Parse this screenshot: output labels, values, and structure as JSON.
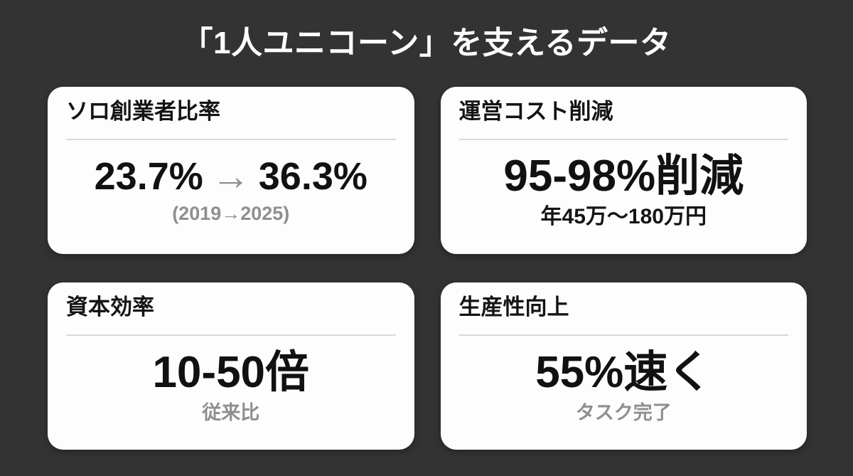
{
  "slide": {
    "title": "「1人ユニコーン」を支えるデータ"
  },
  "colors": {
    "background": "#333333",
    "card_background": "#fdfdfd",
    "title_text": "#ffffff",
    "primary_text": "#141414",
    "muted_text": "#8f8f8f",
    "divider": "#d8d8d8"
  },
  "cards": [
    {
      "id": "solo-founder-ratio",
      "header": "ソロ創業者比率",
      "value_from": "23.7%",
      "value_arrow": "→",
      "value_to": "36.3%",
      "subtext": "(2019→2025)"
    },
    {
      "id": "operating-cost-reduction",
      "header": "運営コスト削減",
      "value": "95-98%削減",
      "subtext": "年45万〜180万円"
    },
    {
      "id": "capital-efficiency",
      "header": "資本効率",
      "value": "10-50倍",
      "subtext": "従来比"
    },
    {
      "id": "productivity-gain",
      "header": "生産性向上",
      "value": "55%速く",
      "subtext": "タスク完了"
    }
  ]
}
